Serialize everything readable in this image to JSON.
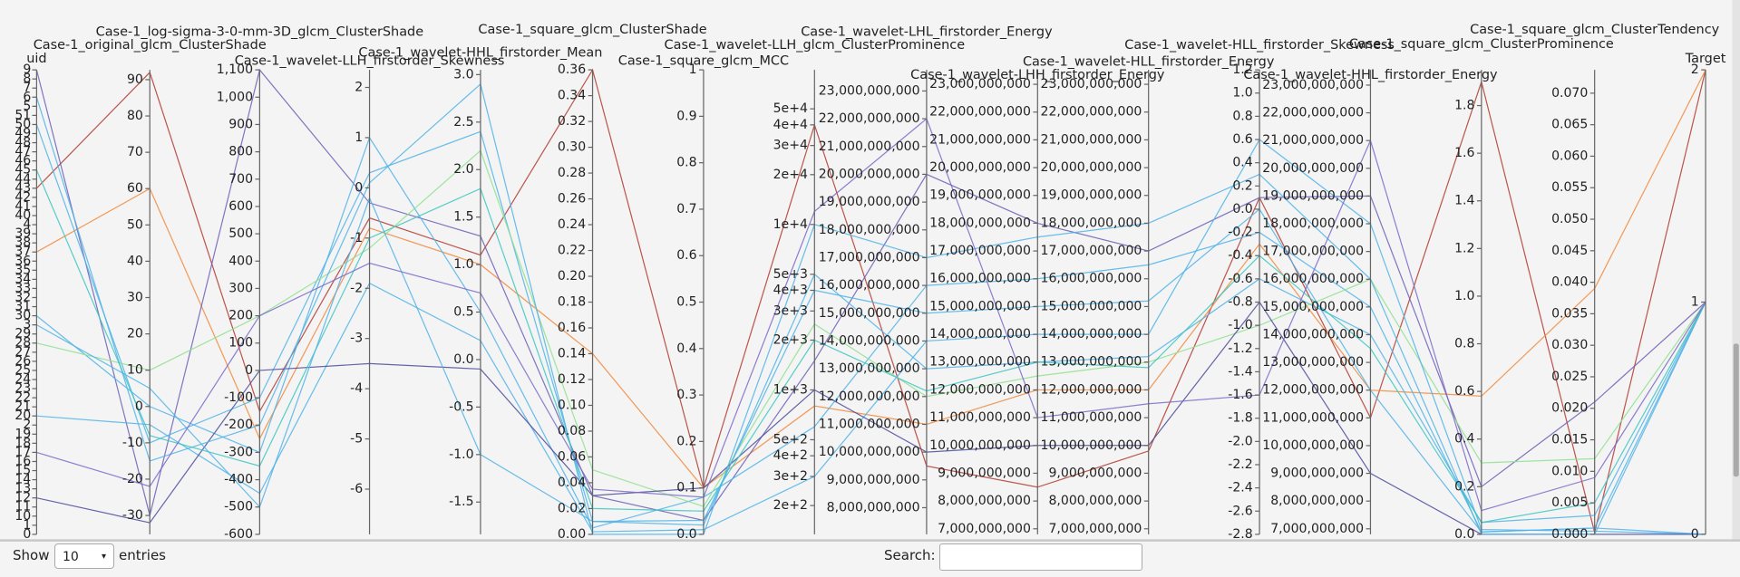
{
  "chart_data": {
    "type": "parallel",
    "axes": [
      {
        "label": "uid",
        "categories": [
          "0",
          "1",
          "10",
          "11",
          "12",
          "13",
          "14",
          "15",
          "16",
          "17",
          "18",
          "19",
          "2",
          "20",
          "21",
          "22",
          "23",
          "24",
          "25",
          "26",
          "27",
          "28",
          "29",
          "3",
          "30",
          "31",
          "32",
          "33",
          "34",
          "35",
          "36",
          "37",
          "38",
          "39",
          "4",
          "40",
          "41",
          "42",
          "43",
          "44",
          "45",
          "46",
          "47",
          "48",
          "49",
          "50",
          "51",
          "5",
          "6",
          "7",
          "8",
          "9"
        ]
      },
      {
        "label": "Case-1_original_glcm_ClusterShade",
        "lim": [
          -35.2,
          92.7
        ],
        "ticks": [
          -30,
          -20,
          -10,
          0,
          10,
          20,
          30,
          40,
          50,
          60,
          70,
          80,
          90
        ]
      },
      {
        "label": "Case-1_log-sigma-3-0-mm-3D_glcm_ClusterShade",
        "lim": [
          -600,
          1100
        ],
        "ticks": [
          -600,
          -500,
          -400,
          -300,
          -200,
          -100,
          0,
          100,
          200,
          300,
          400,
          500,
          600,
          700,
          800,
          900,
          {
            "value": 1000,
            "label": "1,000"
          },
          {
            "value": 1100,
            "label": "1,100"
          }
        ]
      },
      {
        "label": "Case-1_wavelet-LLH_firstorder_Skewness",
        "lim": [
          -6.9,
          2.35
        ],
        "ticks": [
          -6,
          -5,
          -4,
          -3,
          -2,
          -1,
          0,
          1,
          2
        ]
      },
      {
        "label": "Case-1_wavelet-HHL_firstorder_Mean",
        "lim": [
          -1.84,
          3.05
        ],
        "ticks": [
          -1.5,
          {
            "value": -1,
            "label": "-1.0"
          },
          -0.5,
          {
            "value": 0,
            "label": "0.0"
          },
          0.5,
          {
            "value": 1,
            "label": "1.0"
          },
          1.5,
          {
            "value": 2,
            "label": "2.0"
          },
          2.5,
          {
            "value": 3,
            "label": "3.0"
          }
        ]
      },
      {
        "label": "Case-1_square_glcm_ClusterShade",
        "lim": [
          0,
          0.36
        ],
        "ticks": [
          {
            "value": 0,
            "label": "0.00"
          },
          0.02,
          0.04,
          0.06,
          0.08,
          {
            "value": 0.1,
            "label": "0.10"
          },
          0.12,
          0.14,
          0.16,
          0.18,
          {
            "value": 0.2,
            "label": "0.20"
          },
          0.22,
          0.24,
          0.26,
          0.28,
          {
            "value": 0.3,
            "label": "0.30"
          },
          0.32,
          0.34,
          0.36
        ]
      },
      {
        "label": "Case-1_square_glcm_MCC",
        "lim": [
          0,
          1
        ],
        "ticks": [
          {
            "value": 0,
            "label": "0.0"
          },
          0.1,
          0.2,
          0.3,
          0.4,
          0.5,
          0.6,
          0.7,
          0.8,
          0.9,
          1
        ]
      },
      {
        "label": "Case-1_wavelet-LLH_glcm_ClusterProminence",
        "log": true,
        "lim": [
          134,
          86000
        ],
        "ticks": [
          {
            "value": 200,
            "label": "2e+2"
          },
          {
            "value": 300,
            "label": "3e+2"
          },
          {
            "value": 400,
            "label": "4e+2"
          },
          {
            "value": 500,
            "label": "5e+2"
          },
          {
            "value": 1000,
            "label": "1e+3"
          },
          {
            "value": 2000,
            "label": "2e+3"
          },
          {
            "value": 3000,
            "label": "3e+3"
          },
          {
            "value": 4000,
            "label": "4e+3"
          },
          {
            "value": 5000,
            "label": "5e+3"
          },
          {
            "value": 10000,
            "label": "1e+4"
          },
          {
            "value": 20000,
            "label": "2e+4"
          },
          {
            "value": 30000,
            "label": "3e+4"
          },
          {
            "value": 40000,
            "label": "4e+4"
          },
          {
            "value": 50000,
            "label": "5e+4"
          }
        ]
      },
      {
        "label": "Case-1_wavelet-LHL_firstorder_Energy",
        "lim": [
          7040000000,
          23760000000
        ],
        "ticks": [
          {
            "value": 8000000000,
            "label": "8,000,000,000"
          },
          {
            "value": 9000000000,
            "label": "9,000,000,000"
          },
          {
            "value": 10000000000,
            "label": "10,000,000,000"
          },
          {
            "value": 11000000000,
            "label": "11,000,000,000"
          },
          {
            "value": 12000000000,
            "label": "12,000,000,000"
          },
          {
            "value": 13000000000,
            "label": "13,000,000,000"
          },
          {
            "value": 14000000000,
            "label": "14,000,000,000"
          },
          {
            "value": 15000000000,
            "label": "15,000,000,000"
          },
          {
            "value": 16000000000,
            "label": "16,000,000,000"
          },
          {
            "value": 17000000000,
            "label": "17,000,000,000"
          },
          {
            "value": 18000000000,
            "label": "18,000,000,000"
          },
          {
            "value": 19000000000,
            "label": "19,000,000,000"
          },
          {
            "value": 20000000000,
            "label": "20,000,000,000"
          },
          {
            "value": 21000000000,
            "label": "21,000,000,000"
          },
          {
            "value": 22000000000,
            "label": "22,000,000,000"
          },
          {
            "value": 23000000000,
            "label": "23,000,000,000"
          }
        ]
      },
      {
        "label": "Case-1_wavelet-LHH_firstorder_Energy",
        "lim": [
          6800000000,
          23520000000
        ],
        "ticks": [
          {
            "value": 7000000000,
            "label": "7,000,000,000"
          },
          {
            "value": 8000000000,
            "label": "8,000,000,000"
          },
          {
            "value": 9000000000,
            "label": "9,000,000,000"
          },
          {
            "value": 10000000000,
            "label": "10,000,000,000"
          },
          {
            "value": 11000000000,
            "label": "11,000,000,000"
          },
          {
            "value": 12000000000,
            "label": "12,000,000,000"
          },
          {
            "value": 13000000000,
            "label": "13,000,000,000"
          },
          {
            "value": 14000000000,
            "label": "14,000,000,000"
          },
          {
            "value": 15000000000,
            "label": "15,000,000,000"
          },
          {
            "value": 16000000000,
            "label": "16,000,000,000"
          },
          {
            "value": 17000000000,
            "label": "17,000,000,000"
          },
          {
            "value": 18000000000,
            "label": "18,000,000,000"
          },
          {
            "value": 19000000000,
            "label": "19,000,000,000"
          },
          {
            "value": 20000000000,
            "label": "20,000,000,000"
          },
          {
            "value": 21000000000,
            "label": "21,000,000,000"
          },
          {
            "value": 22000000000,
            "label": "22,000,000,000"
          },
          {
            "value": 23000000000,
            "label": "23,000,000,000"
          }
        ]
      },
      {
        "label": "Case-1_wavelet-HLL_firstorder_Energy",
        "lim": [
          6800000000,
          23520000000
        ],
        "ticks": [
          {
            "value": 7000000000,
            "label": "7,000,000,000"
          },
          {
            "value": 8000000000,
            "label": "8,000,000,000"
          },
          {
            "value": 9000000000,
            "label": "9,000,000,000"
          },
          {
            "value": 10000000000,
            "label": "10,000,000,000"
          },
          {
            "value": 11000000000,
            "label": "11,000,000,000"
          },
          {
            "value": 12000000000,
            "label": "12,000,000,000"
          },
          {
            "value": 13000000000,
            "label": "13,000,000,000"
          },
          {
            "value": 14000000000,
            "label": "14,000,000,000"
          },
          {
            "value": 15000000000,
            "label": "15,000,000,000"
          },
          {
            "value": 16000000000,
            "label": "16,000,000,000"
          },
          {
            "value": 17000000000,
            "label": "17,000,000,000"
          },
          {
            "value": 18000000000,
            "label": "18,000,000,000"
          },
          {
            "value": 19000000000,
            "label": "19,000,000,000"
          },
          {
            "value": 20000000000,
            "label": "20,000,000,000"
          },
          {
            "value": 21000000000,
            "label": "21,000,000,000"
          },
          {
            "value": 22000000000,
            "label": "22,000,000,000"
          },
          {
            "value": 23000000000,
            "label": "23,000,000,000"
          }
        ]
      },
      {
        "label": "Case-1_wavelet-HLL_firstorder_Skewness",
        "lim": [
          -2.8,
          1.2
        ],
        "ticks": [
          -2.8,
          -2.6,
          -2.4,
          -2.2,
          {
            "value": -2,
            "label": "-2.0"
          },
          -1.8,
          -1.6,
          -1.4,
          -1.2,
          {
            "value": -1,
            "label": "-1.0"
          },
          -0.8,
          -0.6,
          -0.4,
          -0.2,
          {
            "value": 0,
            "label": "0.0"
          },
          0.2,
          0.4,
          0.6,
          0.8,
          {
            "value": 1,
            "label": "1.0"
          },
          1.2
        ]
      },
      {
        "label": "Case-1_wavelet-HHL_firstorder_Energy",
        "lim": [
          6800000000,
          23550000000
        ],
        "ticks": [
          {
            "value": 7000000000,
            "label": "7,000,000,000"
          },
          {
            "value": 8000000000,
            "label": "8,000,000,000"
          },
          {
            "value": 9000000000,
            "label": "9,000,000,000"
          },
          {
            "value": 10000000000,
            "label": "10,000,000,000"
          },
          {
            "value": 11000000000,
            "label": "11,000,000,000"
          },
          {
            "value": 12000000000,
            "label": "12,000,000,000"
          },
          {
            "value": 13000000000,
            "label": "13,000,000,000"
          },
          {
            "value": 14000000000,
            "label": "14,000,000,000"
          },
          {
            "value": 15000000000,
            "label": "15,000,000,000"
          },
          {
            "value": 16000000000,
            "label": "16,000,000,000"
          },
          {
            "value": 17000000000,
            "label": "17,000,000,000"
          },
          {
            "value": 18000000000,
            "label": "18,000,000,000"
          },
          {
            "value": 19000000000,
            "label": "19,000,000,000"
          },
          {
            "value": 20000000000,
            "label": "20,000,000,000"
          },
          {
            "value": 21000000000,
            "label": "21,000,000,000"
          },
          {
            "value": 22000000000,
            "label": "22,000,000,000"
          },
          {
            "value": 23000000000,
            "label": "23,000,000,000"
          }
        ]
      },
      {
        "label": "Case-1_square_glcm_ClusterProminence",
        "lim": [
          0,
          1.95
        ],
        "ticks": [
          {
            "value": 0,
            "label": "0.0"
          },
          0.2,
          0.4,
          0.6,
          0.8,
          {
            "value": 1,
            "label": "1.0"
          },
          1.2,
          1.4,
          1.6,
          1.8
        ]
      },
      {
        "label": "Case-1_square_glcm_ClusterTendency",
        "lim": [
          0,
          0.0737
        ],
        "ticks": [
          {
            "value": 0,
            "label": "0.000"
          },
          0.005,
          {
            "value": 0.01,
            "label": "0.010"
          },
          0.015,
          {
            "value": 0.02,
            "label": "0.020"
          },
          0.025,
          {
            "value": 0.03,
            "label": "0.030"
          },
          0.035,
          {
            "value": 0.04,
            "label": "0.040"
          },
          0.045,
          {
            "value": 0.05,
            "label": "0.050"
          },
          0.055,
          {
            "value": 0.06,
            "label": "0.060"
          },
          0.065,
          {
            "value": 0.07,
            "label": "0.070"
          }
        ]
      },
      {
        "label": "Target",
        "lim": [
          0,
          2
        ],
        "ticks": [
          0,
          1,
          2
        ]
      }
    ],
    "lines": [
      {
        "color": "#b03a2e",
        "values": [
          "43",
          92,
          -150,
          -0.6,
          1.1,
          0.36,
          0.1,
          40000,
          9500000000,
          8500000000,
          9800000000,
          0.1,
          11000000000,
          1.9,
          0.0003,
          2
        ]
      },
      {
        "color": "#f08a3c",
        "values": [
          "37",
          60,
          -250,
          -0.8,
          1.0,
          0.14,
          0.1,
          800,
          11000000000,
          12000000000,
          12000000000,
          -0.3,
          12000000000,
          0.58,
          0.039,
          2
        ]
      },
      {
        "color": "#6b5fb5",
        "values": [
          "9",
          -30,
          1100,
          -0.3,
          1.3,
          0.03,
          0.03,
          1500,
          20000000000,
          18000000000,
          17000000000,
          0.1,
          19000000000,
          0.2,
          0.021,
          1
        ]
      },
      {
        "color": "#4fb3e8",
        "values": [
          "50",
          -10,
          -100,
          0.3,
          2.4,
          0.01,
          0.02,
          5000,
          13000000000,
          13000000000,
          13200000000,
          -0.6,
          14000000000,
          0.05,
          0.003,
          1
        ]
      },
      {
        "color": "#4fb3e8",
        "values": [
          "30",
          0,
          -300,
          1.0,
          0.5,
          0.005,
          0.08,
          600,
          16000000000,
          16000000000,
          16500000000,
          -0.2,
          15000000000,
          0.01,
          0.001,
          1
        ]
      },
      {
        "color": "#8ee08e",
        "values": [
          "28",
          10,
          200,
          -1.2,
          2.2,
          0.05,
          0.06,
          2500,
          12000000000,
          12500000000,
          13000000000,
          -1.0,
          16000000000,
          0.3,
          0.012,
          1
        ]
      },
      {
        "color": "#4fb3e8",
        "values": [
          "20",
          -5,
          -450,
          -1.9,
          0.2,
          0.002,
          0.01,
          300,
          14000000000,
          14000000000,
          14000000000,
          0.6,
          18000000000,
          0.02,
          0.0005,
          0
        ]
      },
      {
        "color": "#4a4a9a",
        "values": [
          "12",
          -32,
          0,
          -3.5,
          -0.1,
          0.03,
          0.1,
          1000,
          10000000000,
          10000000000,
          10000000000,
          -0.8,
          9000000000,
          0.0,
          0.0,
          0
        ]
      },
      {
        "color": "#4fb3e8",
        "values": [
          "6",
          -15,
          -200,
          0.1,
          2.9,
          0.0,
          0.0,
          10000,
          17000000000,
          17500000000,
          18000000000,
          0.3,
          16000000000,
          0.0,
          0.0,
          1
        ]
      },
      {
        "color": "#3cc6c0",
        "values": [
          "45",
          -8,
          -350,
          -1.0,
          1.8,
          0.02,
          0.05,
          2000,
          12200000000,
          13000000000,
          12800000000,
          -0.4,
          13500000000,
          0.05,
          0.005,
          1
        ]
      },
      {
        "color": "#4fb3e8",
        "values": [
          "3",
          5,
          -500,
          -0.2,
          -1.0,
          0.01,
          0.03,
          4000,
          15000000000,
          15000000000,
          15200000000,
          0.0,
          12000000000,
          0.01,
          0.001,
          0
        ]
      },
      {
        "color": "#7a6ac8",
        "values": [
          "17",
          -22,
          200,
          -1.5,
          0.7,
          0.035,
          0.08,
          12000,
          22000000000,
          11000000000,
          11500000000,
          -1.6,
          21000000000,
          0.1,
          0.009,
          1
        ]
      }
    ]
  },
  "controls": {
    "show_label": "Show",
    "page_length": "10",
    "entries_label": "entries",
    "search_label": "Search:"
  }
}
